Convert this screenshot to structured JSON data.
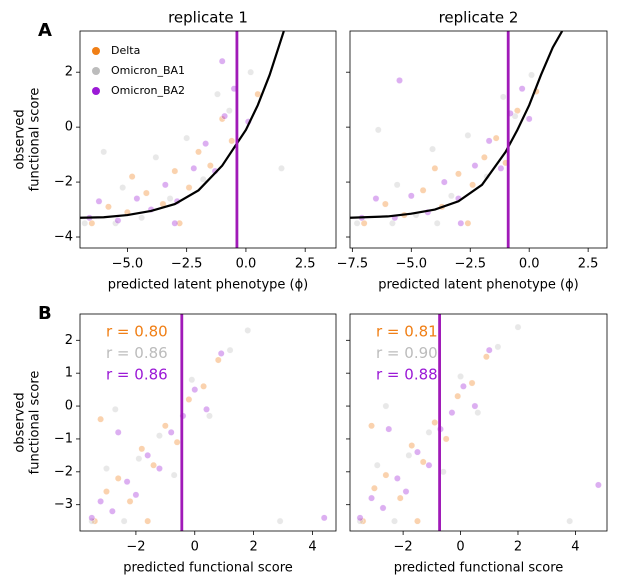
{
  "chart_data": [
    {
      "type": "scatter",
      "panel": "A",
      "title": "replicate 1",
      "xlabel": "predicted latent phenotype (ϕ)",
      "ylabel": [
        "observed",
        "functional score"
      ],
      "xlim": [
        -7.0,
        3.8
      ],
      "ylim": [
        -4.4,
        3.5
      ],
      "xticks": [
        {
          "value": -5,
          "label": "−5.0"
        },
        {
          "value": -2.5,
          "label": "−2.5"
        },
        {
          "value": 0,
          "label": "0.0"
        },
        2.5
      ],
      "yticks": [
        {
          "value": -4,
          "label": "−4"
        },
        {
          "value": -2,
          "label": "−2"
        },
        0,
        2
      ],
      "ytick_labels": true,
      "legend": true,
      "legend_loc": "upper left",
      "series": [
        {
          "name": "Delta",
          "color": "#f07f16",
          "x": [
            -6.5,
            -5.8,
            -5,
            -4.2,
            -3.5,
            -3,
            -2.4,
            -2,
            -1.5,
            -1,
            -0.6,
            0.5,
            -4.8,
            -2.8
          ],
          "y": [
            -3.5,
            -2.9,
            -3.1,
            -2.4,
            -2.8,
            -1.6,
            -2.2,
            -0.9,
            -1.4,
            0.3,
            -0.5,
            1.2,
            -1.8,
            -3.5
          ]
        },
        {
          "name": "Omicron_BA1",
          "color": "#bcbcbc",
          "x": [
            -6.8,
            -6,
            -5.2,
            -4.4,
            -3.8,
            -3.2,
            -2.5,
            -1.8,
            -1.2,
            -0.7,
            0.2,
            1.5,
            -5.5
          ],
          "y": [
            -3.5,
            -0.9,
            -2.2,
            -3.3,
            -1.1,
            -2.6,
            -0.4,
            -1.9,
            1.2,
            0.6,
            2.0,
            -1.5,
            -3.5
          ]
        },
        {
          "name": "Omicron_BA2",
          "color": "#9b1ad6",
          "x": [
            -6.6,
            -6.2,
            -5.4,
            -4.6,
            -4,
            -3.4,
            -2.9,
            -2.2,
            -1.7,
            -1.3,
            -0.9,
            -0.5,
            0.1,
            -1,
            -3
          ],
          "y": [
            -3.3,
            -2.7,
            -3.4,
            -2.6,
            -3,
            -2.1,
            -2.7,
            -1.5,
            -0.6,
            -1.6,
            0.4,
            1.4,
            0.2,
            2.4,
            -3.5
          ]
        }
      ],
      "curve": {
        "color": "#000000",
        "x": [
          -7,
          -6,
          -5,
          -4,
          -3,
          -2,
          -1,
          0,
          0.5,
          1,
          1.6
        ],
        "y": [
          -3.3,
          -3.28,
          -3.2,
          -3.05,
          -2.8,
          -2.3,
          -1.4,
          -0.1,
          0.8,
          1.9,
          3.5
        ]
      },
      "vline": -0.38,
      "vline_color": "#a01ab8"
    },
    {
      "type": "scatter",
      "title": "replicate 2",
      "xlabel": "predicted latent phenotype (ϕ)",
      "xlim": [
        -7.6,
        3.3
      ],
      "ylim": [
        -4.4,
        3.5
      ],
      "xticks": [
        {
          "value": -7.5,
          "label": "−7.5"
        },
        {
          "value": -5,
          "label": "−5.0"
        },
        {
          "value": -2.5,
          "label": "−2.5"
        },
        {
          "value": 0,
          "label": "0.0"
        },
        2.5
      ],
      "yticks": [
        -4,
        -2,
        0,
        2
      ],
      "ytick_labels": false,
      "legend": false,
      "series": [
        {
          "name": "Delta",
          "color": "#f07f16",
          "x": [
            -7,
            -6.1,
            -5.3,
            -4.5,
            -3.7,
            -3,
            -2.4,
            -1.9,
            -1.4,
            -1,
            -0.5,
            0.3,
            -4,
            -2.6
          ],
          "y": [
            -3.5,
            -2.8,
            -3.2,
            -2.3,
            -2.9,
            -1.7,
            -2.1,
            -1.1,
            -0.4,
            -1.3,
            0.6,
            1.3,
            -1.5,
            -3.5
          ]
        },
        {
          "name": "Omicron_BA1",
          "color": "#bcbcbc",
          "x": [
            -7.3,
            -6.4,
            -5.6,
            -4.8,
            -4.1,
            -3.3,
            -2.6,
            -1.8,
            -1.1,
            -0.6,
            0.1,
            -5.8,
            -3.9
          ],
          "y": [
            -3.5,
            -0.1,
            -2.1,
            -3.2,
            -0.8,
            -2.5,
            -0.3,
            -1.8,
            1.1,
            0.4,
            1.9,
            -3.5,
            -3.5
          ]
        },
        {
          "name": "Omicron_BA2",
          "color": "#9b1ad6",
          "x": [
            -7.1,
            -6.5,
            -5.7,
            -5,
            -4.3,
            -3.6,
            -3,
            -2.3,
            -1.7,
            -1.2,
            -0.8,
            -0.3,
            0,
            -5.5,
            -2.9
          ],
          "y": [
            -3.3,
            -2.6,
            -3.3,
            -2.5,
            -3.1,
            -2,
            -2.6,
            -1.4,
            -0.5,
            -1.5,
            0.5,
            1.4,
            0.3,
            1.7,
            -3.5
          ]
        }
      ],
      "curve": {
        "color": "#000000",
        "x": [
          -7.6,
          -6,
          -5,
          -4,
          -3,
          -2,
          -1,
          -0.5,
          0,
          0.5,
          1,
          1.4
        ],
        "y": [
          -3.3,
          -3.25,
          -3.15,
          -3.0,
          -2.7,
          -2.1,
          -0.9,
          -0.1,
          0.8,
          1.9,
          2.9,
          3.5
        ]
      },
      "vline": -0.89,
      "vline_color": "#a01ab8"
    },
    {
      "type": "scatter",
      "panel": "B",
      "xlabel": "predicted functional score",
      "ylabel": [
        "observed",
        "functional score"
      ],
      "xlim": [
        -3.9,
        4.8
      ],
      "ylim": [
        -3.8,
        2.8
      ],
      "xticks": [
        {
          "value": -2,
          "label": "−2"
        },
        0,
        2,
        4
      ],
      "yticks": [
        {
          "value": -3,
          "label": "−3"
        },
        {
          "value": -2,
          "label": "−2"
        },
        {
          "value": -1,
          "label": "−1"
        },
        0,
        1,
        2
      ],
      "ytick_labels": true,
      "legend": false,
      "annotations": [
        {
          "text": "r = 0.80",
          "color": "#f07f16"
        },
        {
          "text": "r = 0.86",
          "color": "#bcbcbc"
        },
        {
          "text": "r = 0.86",
          "color": "#9b1ad6"
        }
      ],
      "series": [
        {
          "name": "Delta",
          "color": "#f07f16",
          "x": [
            -3.4,
            -3,
            -2.6,
            -2.2,
            -1.8,
            -1.4,
            -1,
            -0.6,
            -0.2,
            0.3,
            0.8,
            -3.2,
            -1.6
          ],
          "y": [
            -3.5,
            -2.6,
            -2.2,
            -2.9,
            -1.3,
            -1.8,
            -0.6,
            -1.1,
            0.2,
            0.6,
            1.4,
            -0.4,
            -3.5
          ]
        },
        {
          "name": "Omicron_BA1",
          "color": "#bcbcbc",
          "x": [
            -3.5,
            -3,
            -2.4,
            -1.9,
            -1.2,
            -0.7,
            -0.1,
            0.5,
            1.2,
            1.8,
            2.9,
            -2.7
          ],
          "y": [
            -3.5,
            -1.9,
            -3.5,
            -1.6,
            -0.9,
            -2.1,
            0.8,
            -0.3,
            1.7,
            2.3,
            -3.5,
            -0.1
          ]
        },
        {
          "name": "Omicron_BA2",
          "color": "#9b1ad6",
          "x": [
            -3.5,
            -3.2,
            -2.8,
            -2.3,
            -2,
            -1.6,
            -1.2,
            -0.8,
            -0.4,
            0,
            0.4,
            0.9,
            4.4,
            -2.6
          ],
          "y": [
            -3.4,
            -2.9,
            -3.2,
            -2.3,
            -2.7,
            -1.5,
            -1.9,
            -0.8,
            -0.3,
            0.5,
            -0.1,
            1.6,
            -3.4,
            -0.8
          ]
        }
      ],
      "vline": -0.44,
      "vline_color": "#a01ab8"
    },
    {
      "type": "scatter",
      "xlabel": "predicted functional score",
      "xlim": [
        -3.85,
        5.1
      ],
      "ylim": [
        -3.8,
        2.8
      ],
      "xticks": [
        {
          "value": -2,
          "label": "−2"
        },
        0,
        2,
        4
      ],
      "yticks": [
        -3,
        -2,
        -1,
        0,
        1,
        2
      ],
      "ytick_labels": false,
      "legend": false,
      "annotations": [
        {
          "text": "r = 0.81",
          "color": "#f07f16"
        },
        {
          "text": "r = 0.90",
          "color": "#bcbcbc"
        },
        {
          "text": "r = 0.88",
          "color": "#9b1ad6"
        }
      ],
      "series": [
        {
          "name": "Delta",
          "color": "#f07f16",
          "x": [
            -3.4,
            -3,
            -2.6,
            -2.1,
            -1.7,
            -1.3,
            -0.9,
            -0.5,
            -0.1,
            0.4,
            0.9,
            -3.1,
            -1.5
          ],
          "y": [
            -3.5,
            -2.5,
            -2.1,
            -2.8,
            -1.2,
            -1.7,
            -0.5,
            -1,
            0.3,
            0.7,
            1.5,
            -0.6,
            -3.5
          ]
        },
        {
          "name": "Omicron_BA1",
          "color": "#bcbcbc",
          "x": [
            -3.5,
            -2.9,
            -2.3,
            -1.8,
            -1.1,
            -0.6,
            0,
            0.6,
            1.3,
            2,
            3.8,
            -2.6
          ],
          "y": [
            -3.5,
            -1.8,
            -3.5,
            -1.5,
            -0.8,
            -2,
            0.9,
            -0.2,
            1.8,
            2.4,
            -3.5,
            0
          ]
        },
        {
          "name": "Omicron_BA2",
          "color": "#9b1ad6",
          "x": [
            -3.5,
            -3.1,
            -2.7,
            -2.2,
            -1.9,
            -1.5,
            -1.1,
            -0.7,
            -0.3,
            0.1,
            0.5,
            1,
            4.8,
            -2.5
          ],
          "y": [
            -3.4,
            -2.8,
            -3.1,
            -2.2,
            -2.6,
            -1.4,
            -1.8,
            -0.7,
            -0.2,
            0.6,
            0,
            1.7,
            -2.4,
            -0.7
          ]
        }
      ],
      "vline": -0.73,
      "vline_color": "#a01ab8"
    }
  ]
}
